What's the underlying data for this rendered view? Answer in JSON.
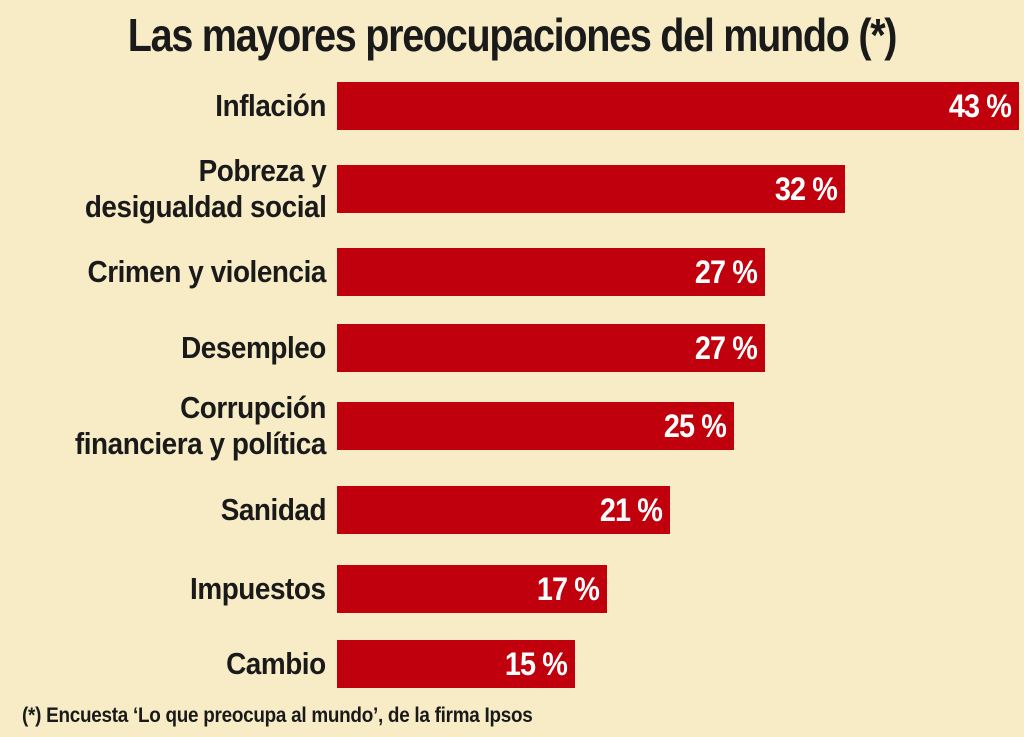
{
  "chart_data": {
    "type": "bar",
    "orientation": "horizontal",
    "title": "Las mayores preocupaciones del mundo (*)",
    "categories": [
      "Inflación",
      "Pobreza y\ndesigualdad social",
      "Crimen y violencia",
      "Desempleo",
      "Corrupción\nfinanciera y política",
      "Sanidad",
      "Impuestos",
      "Cambio"
    ],
    "values": [
      43,
      32,
      27,
      27,
      25,
      21,
      17,
      15
    ],
    "value_labels": [
      "43 %",
      "32 %",
      "27 %",
      "27 %",
      "25 %",
      "21 %",
      "17 %",
      "15 %"
    ],
    "unit": "%",
    "xlim": [
      0,
      43
    ],
    "grid": false,
    "bar_color": "#c0000c",
    "background_color": "#f7ecc6"
  },
  "footnote": "(*) Encuesta ‘Lo que preocupa al mundo’, de la firma Ipsos"
}
